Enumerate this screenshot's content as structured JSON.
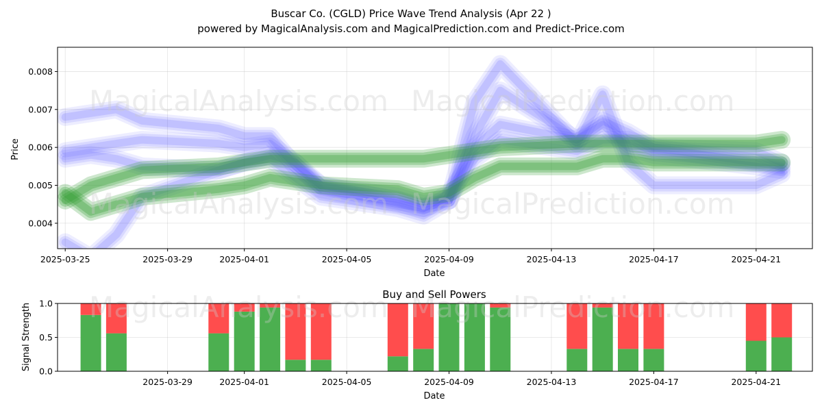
{
  "title_line1": "Buscar Co. (CGLD) Price Wave Trend Analysis (Apr 22 )",
  "title_line2": "powered by MagicalAnalysis.com and MagicalPrediction.com and Predict-Price.com",
  "watermark_1": "MagicalAnalysis.com",
  "watermark_2": "MagicalPrediction.com",
  "colors": {
    "blue_band": "#4b4bff",
    "green_band": "#2e9a2e",
    "buy": "#4caf50",
    "sell": "#ff4d4d"
  },
  "chart_data": [
    {
      "type": "area",
      "title": "",
      "xlabel": "Date",
      "ylabel": "Price",
      "x_ticks": [
        "2025-03-25",
        "2025-03-29",
        "2025-04-01",
        "2025-04-05",
        "2025-04-09",
        "2025-04-13",
        "2025-04-17",
        "2025-04-21"
      ],
      "y_ticks": [
        "0.004",
        "0.005",
        "0.006",
        "0.007",
        "0.008"
      ],
      "xlim": [
        "2025-03-24.7",
        "2025-04-23.2"
      ],
      "ylim": [
        0.00333,
        0.00864
      ],
      "grid": true,
      "series": [
        {
          "band": "blue",
          "x": [
            "2025-03-25",
            "2025-03-26",
            "2025-03-27",
            "2025-03-28",
            "2025-03-31",
            "2025-04-01",
            "2025-04-02",
            "2025-04-03",
            "2025-04-04",
            "2025-04-07",
            "2025-04-08",
            "2025-04-09",
            "2025-04-10",
            "2025-04-11",
            "2025-04-14",
            "2025-04-15",
            "2025-04-16",
            "2025-04-17",
            "2025-04-21",
            "2025-04-22"
          ],
          "values": [
            0.0068,
            0.0069,
            0.007,
            0.0067,
            0.0065,
            0.0063,
            0.0063,
            0.0055,
            0.005,
            0.0047,
            0.0045,
            0.0046,
            0.006,
            0.0066,
            0.0062,
            0.0067,
            0.0064,
            0.006,
            0.0056,
            0.0055
          ]
        },
        {
          "band": "blue",
          "x": [
            "2025-03-25",
            "2025-03-26",
            "2025-03-27",
            "2025-03-28",
            "2025-03-31",
            "2025-04-01",
            "2025-04-02",
            "2025-04-03",
            "2025-04-04",
            "2025-04-07",
            "2025-04-08",
            "2025-04-09",
            "2025-04-10",
            "2025-04-11",
            "2025-04-14",
            "2025-04-15",
            "2025-04-16",
            "2025-04-17",
            "2025-04-21",
            "2025-04-22"
          ],
          "values": [
            0.0059,
            0.006,
            0.0061,
            0.0062,
            0.0061,
            0.006,
            0.0061,
            0.0056,
            0.0049,
            0.0045,
            0.0044,
            0.0046,
            0.0063,
            0.0075,
            0.0062,
            0.0066,
            0.006,
            0.0058,
            0.0055,
            0.0054
          ]
        },
        {
          "band": "blue",
          "x": [
            "2025-03-25",
            "2025-03-26",
            "2025-03-27",
            "2025-03-28",
            "2025-03-31",
            "2025-04-01",
            "2025-04-02",
            "2025-04-03",
            "2025-04-04",
            "2025-04-07",
            "2025-04-08",
            "2025-04-09",
            "2025-04-10",
            "2025-04-11",
            "2025-04-14",
            "2025-04-15",
            "2025-04-16",
            "2025-04-17",
            "2025-04-21",
            "2025-04-22"
          ],
          "values": [
            0.0057,
            0.0058,
            0.0057,
            0.0055,
            0.0054,
            0.0056,
            0.0057,
            0.0052,
            0.0047,
            0.0044,
            0.0042,
            0.0046,
            0.0072,
            0.0082,
            0.0061,
            0.0074,
            0.0056,
            0.005,
            0.005,
            0.0053
          ]
        },
        {
          "band": "blue",
          "x": [
            "2025-03-25",
            "2025-03-26",
            "2025-03-27",
            "2025-03-28",
            "2025-03-31",
            "2025-04-01",
            "2025-04-02",
            "2025-04-03",
            "2025-04-04",
            "2025-04-07",
            "2025-04-08",
            "2025-04-09",
            "2025-04-10",
            "2025-04-11",
            "2025-04-14",
            "2025-04-15",
            "2025-04-16",
            "2025-04-17",
            "2025-04-21",
            "2025-04-22"
          ],
          "values": [
            0.0035,
            0.0031,
            0.0037,
            0.0047,
            0.0054,
            0.0056,
            0.0058,
            0.0056,
            0.005,
            0.0046,
            0.0044,
            0.0048,
            0.0057,
            0.0062,
            0.0059,
            0.0062,
            0.0062,
            0.006,
            0.0059,
            0.0056
          ]
        },
        {
          "band": "green",
          "x": [
            "2025-03-25",
            "2025-03-26",
            "2025-03-27",
            "2025-03-28",
            "2025-03-31",
            "2025-04-01",
            "2025-04-02",
            "2025-04-03",
            "2025-04-04",
            "2025-04-07",
            "2025-04-08",
            "2025-04-09",
            "2025-04-10",
            "2025-04-11",
            "2025-04-14",
            "2025-04-15",
            "2025-04-16",
            "2025-04-17",
            "2025-04-21",
            "2025-04-22"
          ],
          "values": [
            0.0048,
            0.0043,
            0.0045,
            0.0047,
            0.0049,
            0.005,
            0.0052,
            0.0051,
            0.005,
            0.0049,
            0.0047,
            0.0048,
            0.0052,
            0.0055,
            0.0055,
            0.0057,
            0.0057,
            0.0056,
            0.0056,
            0.0056
          ]
        },
        {
          "band": "green",
          "x": [
            "2025-03-25",
            "2025-03-26",
            "2025-03-27",
            "2025-03-28",
            "2025-03-31",
            "2025-04-01",
            "2025-04-02",
            "2025-04-03",
            "2025-04-04",
            "2025-04-07",
            "2025-04-08",
            "2025-04-09",
            "2025-04-10",
            "2025-04-11",
            "2025-04-14",
            "2025-04-15",
            "2025-04-16",
            "2025-04-17",
            "2025-04-21",
            "2025-04-22"
          ],
          "values": [
            0.0046,
            0.005,
            0.0052,
            0.0054,
            0.0055,
            0.0056,
            0.0057,
            0.0057,
            0.0057,
            0.0057,
            0.0057,
            0.0058,
            0.0059,
            0.006,
            0.0061,
            0.0061,
            0.0061,
            0.0061,
            0.0061,
            0.0062
          ]
        }
      ]
    },
    {
      "type": "bar",
      "title": "Buy and Sell Powers",
      "xlabel": "Date",
      "ylabel": "Signal Strength",
      "x_ticks": [
        "2025-03-29",
        "2025-04-01",
        "2025-04-05",
        "2025-04-09",
        "2025-04-13",
        "2025-04-17",
        "2025-04-21"
      ],
      "y_ticks": [
        "0.0",
        "0.5",
        "1.0"
      ],
      "ylim": [
        0,
        1
      ],
      "stacked": true,
      "categories": [
        "2025-03-26",
        "2025-03-27",
        "2025-03-31",
        "2025-04-01",
        "2025-04-02",
        "2025-04-03",
        "2025-04-04",
        "2025-04-07",
        "2025-04-08",
        "2025-04-09",
        "2025-04-10",
        "2025-04-11",
        "2025-04-14",
        "2025-04-15",
        "2025-04-16",
        "2025-04-17",
        "2025-04-21",
        "2025-04-22"
      ],
      "series": [
        {
          "name": "Buy",
          "values": [
            0.83,
            0.56,
            0.56,
            0.88,
            0.94,
            0.17,
            0.17,
            0.22,
            0.33,
            1.0,
            1.0,
            0.94,
            0.33,
            0.94,
            0.33,
            0.33,
            0.45,
            0.5
          ]
        },
        {
          "name": "Sell",
          "values": [
            0.17,
            0.44,
            0.44,
            0.12,
            0.06,
            0.83,
            0.83,
            0.78,
            0.67,
            0.0,
            0.0,
            0.06,
            0.67,
            0.06,
            0.67,
            0.67,
            0.55,
            0.5
          ]
        }
      ]
    }
  ]
}
